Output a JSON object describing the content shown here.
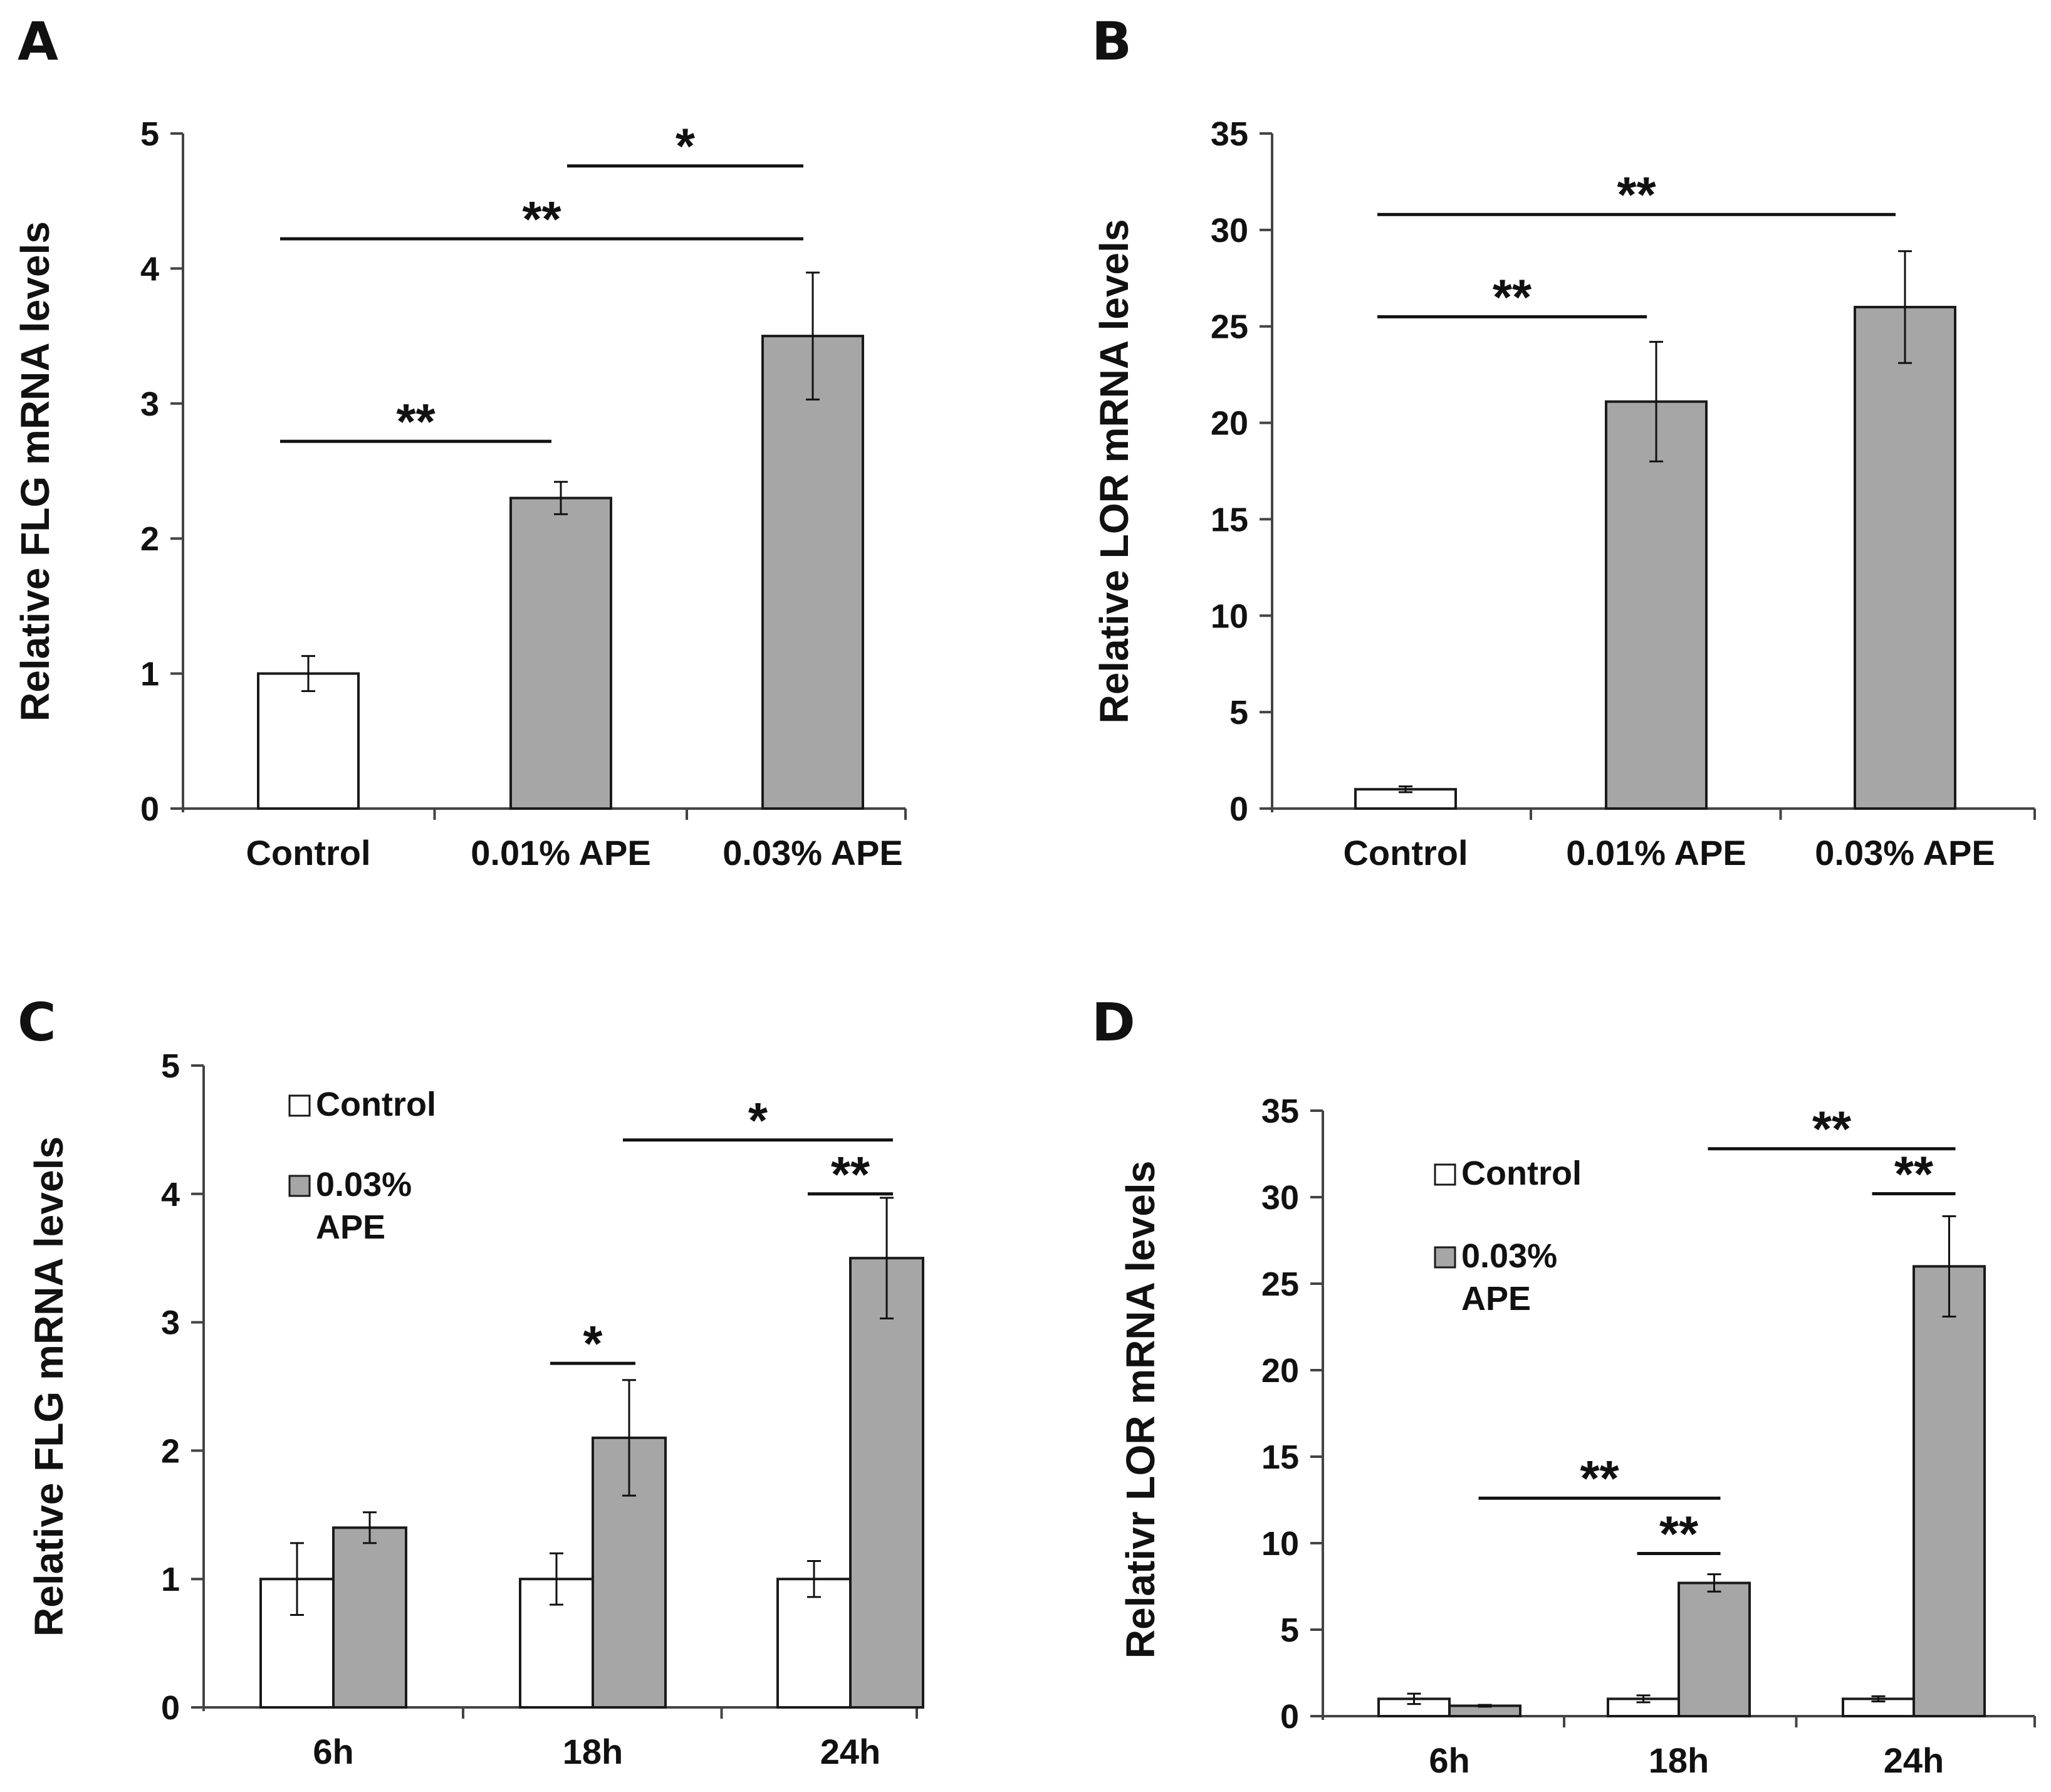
{
  "chart_data": [
    {
      "panel": "A",
      "type": "bar",
      "ylabel": "Relative FLG mRNA levels",
      "ylim": [
        0,
        5
      ],
      "yticks": [
        "0",
        "1",
        "2",
        "3",
        "4",
        "5"
      ],
      "categories": [
        "Control",
        "0.01% APE",
        "0.03% APE"
      ],
      "values": [
        1.0,
        2.3,
        3.5
      ],
      "errors": [
        0.13,
        0.12,
        0.47
      ],
      "colors": [
        "#ffffff",
        "#a6a6a6",
        "#a6a6a6"
      ],
      "significance": [
        {
          "from": 0,
          "to": 1,
          "label": "**",
          "level": 2.72
        },
        {
          "from": 0,
          "to": 2,
          "label": "**",
          "level": 4.22
        },
        {
          "from": 1,
          "to": 2,
          "label": "*",
          "level": 4.76
        }
      ]
    },
    {
      "panel": "B",
      "type": "bar",
      "ylabel": "Relative LOR mRNA levels",
      "ylim": [
        0,
        35
      ],
      "yticks": [
        "0",
        "5",
        "10",
        "15",
        "20",
        "25",
        "30",
        "35"
      ],
      "categories": [
        "Control",
        "0.01% APE",
        "0.03% APE"
      ],
      "values": [
        1.0,
        21.1,
        26.0
      ],
      "errors": [
        0.15,
        3.1,
        2.9
      ],
      "colors": [
        "#ffffff",
        "#a6a6a6",
        "#a6a6a6"
      ],
      "significance": [
        {
          "from": 0,
          "to": 1,
          "label": "**",
          "level": 25.5
        },
        {
          "from": 0,
          "to": 2,
          "label": "**",
          "level": 30.8
        }
      ]
    },
    {
      "panel": "C",
      "type": "bar",
      "ylabel": "Relative FLG mRNA levels",
      "ylim": [
        0,
        5
      ],
      "yticks": [
        "0",
        "1",
        "2",
        "3",
        "4",
        "5"
      ],
      "categories": [
        "6h",
        "18h",
        "24h"
      ],
      "series": [
        {
          "name": "Control",
          "color": "#ffffff",
          "values": [
            1.0,
            1.0,
            1.0
          ],
          "errors": [
            0.28,
            0.2,
            0.14
          ]
        },
        {
          "name": "0.03% APE",
          "color": "#a6a6a6",
          "values": [
            1.4,
            2.1,
            3.5
          ],
          "errors": [
            0.12,
            0.45,
            0.47
          ]
        }
      ],
      "legend": {
        "items": [
          "Control",
          "0.03%"
        ],
        "continuation": "APE",
        "position": "top-left"
      },
      "significance": [
        {
          "group_from": 1,
          "series_from": 0,
          "group_to": 1,
          "series_to": 1,
          "label": "*",
          "level": 2.68
        },
        {
          "group_from": 2,
          "series_from": 0,
          "group_to": 2,
          "series_to": 1,
          "label": "**",
          "level": 4.0
        },
        {
          "group_from": 1,
          "series_from": 1,
          "group_to": 2,
          "series_to": 1,
          "label": "*",
          "level": 4.42
        }
      ]
    },
    {
      "panel": "D",
      "type": "bar",
      "ylabel": "Relativr LOR mRNA levels",
      "ylim": [
        0,
        35
      ],
      "yticks": [
        "0",
        "5",
        "10",
        "15",
        "20",
        "25",
        "30",
        "35"
      ],
      "categories": [
        "6h",
        "18h",
        "24h"
      ],
      "series": [
        {
          "name": "Control",
          "color": "#ffffff",
          "values": [
            1.0,
            1.0,
            1.0
          ],
          "errors": [
            0.3,
            0.2,
            0.15
          ]
        },
        {
          "name": "0.03% APE",
          "color": "#a6a6a6",
          "values": [
            0.6,
            7.7,
            26.0
          ],
          "errors": [
            0.05,
            0.5,
            2.9
          ]
        }
      ],
      "legend": {
        "items": [
          "Control",
          "0.03%"
        ],
        "continuation": "APE",
        "position": "top-left"
      },
      "significance": [
        {
          "group_from": 1,
          "series_from": 0,
          "group_to": 1,
          "series_to": 1,
          "label": "**",
          "level": 9.4
        },
        {
          "group_from": 0,
          "series_from": 1,
          "group_to": 1,
          "series_to": 1,
          "label": "**",
          "level": 12.6
        },
        {
          "group_from": 2,
          "series_from": 0,
          "group_to": 2,
          "series_to": 1,
          "label": "**",
          "level": 30.2
        },
        {
          "group_from": 1,
          "series_from": 1,
          "group_to": 2,
          "series_to": 1,
          "label": "**",
          "level": 32.8
        }
      ]
    }
  ]
}
